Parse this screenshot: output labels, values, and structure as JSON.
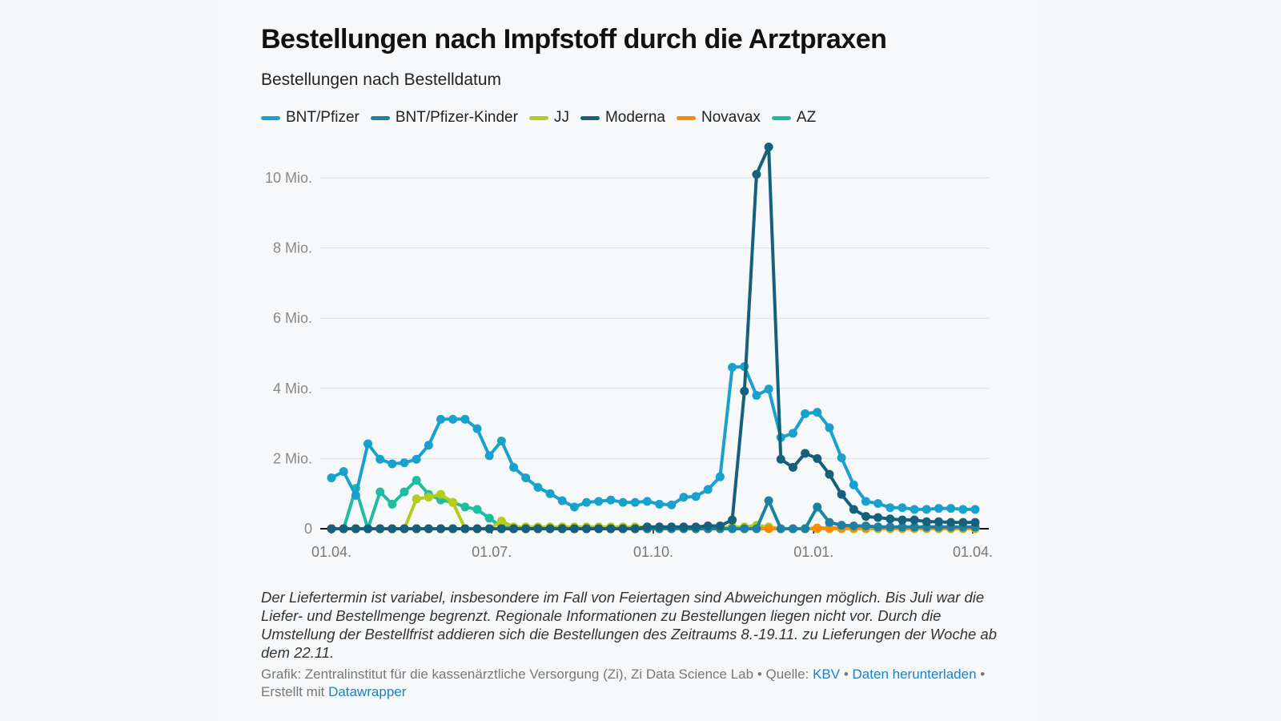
{
  "chart_data": {
    "type": "line",
    "title": "Bestellungen nach Impfstoff durch die Arztpraxen",
    "subtitle": "Bestellungen nach Bestelldatum",
    "xlabel": "",
    "ylabel": "",
    "ylim": [
      0,
      11
    ],
    "y_unit": "Mio.",
    "y_ticks": [
      {
        "v": 0,
        "label": "0"
      },
      {
        "v": 2,
        "label": "2 Mio."
      },
      {
        "v": 4,
        "label": "4 Mio."
      },
      {
        "v": 6,
        "label": "6 Mio."
      },
      {
        "v": 8,
        "label": "8 Mio."
      },
      {
        "v": 10,
        "label": "10 Mio."
      }
    ],
    "x_ticks": [
      {
        "i": 0,
        "label": "01.04."
      },
      {
        "i": 13.2,
        "label": "01.07."
      },
      {
        "i": 26.5,
        "label": "01.10."
      },
      {
        "i": 39.7,
        "label": "01.01."
      },
      {
        "i": 52.8,
        "label": "01.04."
      }
    ],
    "n_points": 54,
    "grid": true,
    "legend_position": "top-left",
    "series": [
      {
        "name": "BNT/Pfizer",
        "color": "#18a1cd",
        "values": [
          1.45,
          1.63,
          0.95,
          2.42,
          1.98,
          1.85,
          1.88,
          1.98,
          2.38,
          3.12,
          3.12,
          3.12,
          2.85,
          2.08,
          2.5,
          1.75,
          1.45,
          1.18,
          1.0,
          0.8,
          0.62,
          0.75,
          0.78,
          0.82,
          0.75,
          0.75,
          0.78,
          0.7,
          0.68,
          0.9,
          0.92,
          1.12,
          1.48,
          4.6,
          4.62,
          3.8,
          3.98,
          2.6,
          2.72,
          3.28,
          3.32,
          2.88,
          2.02,
          1.25,
          0.78,
          0.72,
          0.6,
          0.6,
          0.55,
          0.55,
          0.58,
          0.58,
          0.55,
          0.55
        ]
      },
      {
        "name": "BNT/Pfizer-Kinder",
        "color": "#1d81a2",
        "values": [
          0,
          0,
          0,
          0,
          0,
          0,
          0,
          0,
          0,
          0,
          0,
          0,
          0,
          0,
          0,
          0,
          0,
          0,
          0,
          0,
          0,
          0,
          0,
          0,
          0,
          0,
          0,
          0,
          0,
          0,
          0,
          0,
          0,
          0,
          0,
          0,
          0.8,
          0,
          0,
          0,
          0.62,
          0.18,
          0.1,
          0.08,
          0.08,
          0.05,
          0.05,
          0.05,
          0.05,
          0.05,
          0.05,
          0.05,
          0.05,
          0.05
        ]
      },
      {
        "name": "JJ",
        "color": "#b6cc1a",
        "values": [
          0,
          0,
          0,
          0,
          0,
          0,
          0,
          0.85,
          0.9,
          0.98,
          0.75,
          0,
          0,
          0,
          0.22,
          0.05,
          0.05,
          0.05,
          0.05,
          0.05,
          0.05,
          0.05,
          0.05,
          0.05,
          0.05,
          0.05,
          0.05,
          0.03,
          0.03,
          0.03,
          0.03,
          0.03,
          0.03,
          0.05,
          0.05,
          0.1,
          0.05,
          0,
          0,
          0,
          0,
          0,
          0,
          0,
          0,
          0,
          0,
          0,
          0,
          0,
          0,
          0,
          0,
          0
        ]
      },
      {
        "name": "Moderna",
        "color": "#15607a",
        "values": [
          0,
          0,
          0,
          0,
          0,
          0,
          0,
          0,
          0,
          0,
          0,
          0,
          0,
          0,
          0,
          0,
          0,
          0,
          0,
          0,
          0,
          0,
          0,
          0,
          0,
          0,
          0.05,
          0.05,
          0.05,
          0.05,
          0.05,
          0.08,
          0.08,
          0.25,
          3.92,
          10.1,
          10.88,
          1.98,
          1.75,
          2.15,
          2.0,
          1.55,
          0.98,
          0.55,
          0.35,
          0.32,
          0.28,
          0.25,
          0.25,
          0.2,
          0.2,
          0.18,
          0.18,
          0.18
        ]
      },
      {
        "name": "Novavax",
        "color": "#fa8c00",
        "values": [
          0,
          0,
          0,
          0,
          0,
          0,
          0,
          0,
          0,
          0,
          0,
          0,
          0,
          0,
          0,
          0,
          0,
          0,
          0,
          0,
          0,
          0,
          0,
          0,
          0,
          0,
          0,
          0,
          0,
          0,
          0,
          0,
          0,
          0,
          0,
          0,
          0,
          0,
          0,
          0,
          0.02,
          0.02,
          0.02,
          0.02,
          0.02,
          0.02,
          0.02,
          0.02,
          0.02,
          0.02,
          0.02,
          0.02,
          0.02,
          0.02
        ]
      },
      {
        "name": "AZ",
        "color": "#1fbd9f",
        "values": [
          0,
          0,
          1.15,
          0,
          1.05,
          0.7,
          1.05,
          1.38,
          0.98,
          0.82,
          0.75,
          0.62,
          0.55,
          0.3,
          0.05,
          0.02,
          0.02,
          0.02,
          0.02,
          0.02,
          0.02,
          0.02,
          0.02,
          0.02,
          0.02,
          0.02,
          0.02,
          0.02,
          0.02,
          0.02,
          0.02,
          0.02,
          0.02,
          0.02,
          0.02,
          0.02,
          0.02,
          0,
          0,
          0,
          0,
          0,
          0,
          0,
          0,
          0,
          0,
          0,
          0,
          0,
          0,
          0,
          0,
          0
        ]
      }
    ]
  },
  "notes": "Der Liefertermin ist variabel, insbesondere im Fall von Feiertagen sind Abweichungen möglich. Bis Juli war die Liefer- und Bestellmenge begrenzt. Regionale Informationen zu Bestellungen liegen nicht vor. Durch die Umstellung der Bestellfrist addieren sich die Bestellungen des Zeitraums 8.-19.11. zu Lieferungen der Woche ab dem 22.11.",
  "source": {
    "prefix": "Grafik: Zentralinstitut für die kassenärztliche Versorgung (Zi), Zi Data Science Lab • Quelle: ",
    "kbv_link": "KBV",
    "sep1": " • ",
    "download_link": "Daten herunterladen",
    "sep2": " • Erstellt mit ",
    "datawrapper_link": "Datawrapper"
  }
}
